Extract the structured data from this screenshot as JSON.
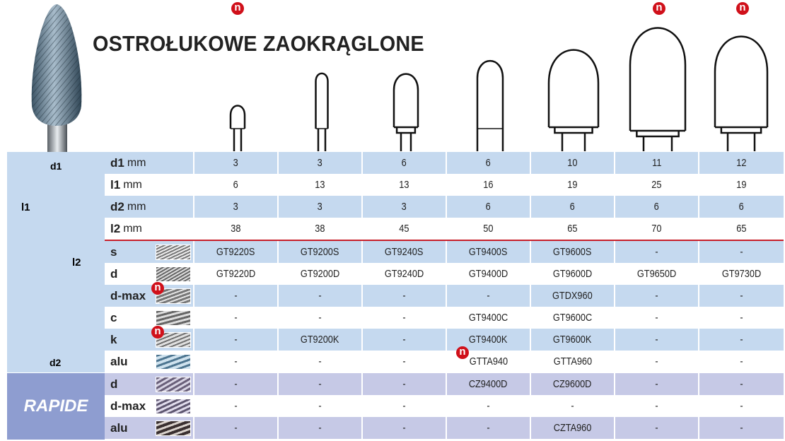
{
  "title": "OSTROŁUKOWE ZAOKRĄGLONE",
  "new_badge": "n",
  "colors": {
    "blue_row": "#c5d9ef",
    "white_row": "#ffffff",
    "rapide_row": "#c6c9e6",
    "rapide_label_bg": "#8e9dd0",
    "accent_red": "#c8202a"
  },
  "diagram_labels": {
    "d1": "d1",
    "l1": "l1",
    "l2": "l2",
    "d2": "d2"
  },
  "dimension_rows": [
    {
      "name": "d1",
      "unit": "mm",
      "values": [
        "3",
        "3",
        "6",
        "6",
        "10",
        "11",
        "12"
      ]
    },
    {
      "name": "l1",
      "unit": "mm",
      "values": [
        "6",
        "13",
        "13",
        "16",
        "19",
        "25",
        "19"
      ]
    },
    {
      "name": "d2",
      "unit": "mm",
      "values": [
        "3",
        "3",
        "3",
        "6",
        "6",
        "6",
        "6"
      ]
    },
    {
      "name": "l2",
      "unit": "mm",
      "values": [
        "38",
        "38",
        "45",
        "50",
        "65",
        "70",
        "65"
      ]
    }
  ],
  "new_columns": [
    1,
    6,
    7
  ],
  "cut_rows": [
    {
      "name": "s",
      "texture": "spiral-fine",
      "new": false,
      "values": [
        "GT9220S",
        "GT9200S",
        "GT9240S",
        "GT9400S",
        "GT9600S",
        "-",
        "-"
      ]
    },
    {
      "name": "d",
      "texture": "diamond",
      "new": false,
      "values": [
        "GT9220D",
        "GT9200D",
        "GT9240D",
        "GT9400D",
        "GT9600D",
        "GT9650D",
        "GT9730D"
      ]
    },
    {
      "name": "d-max",
      "texture": "diamond-max",
      "new": true,
      "values": [
        "-",
        "-",
        "-",
        "-",
        "GTDX960",
        "-",
        "-"
      ]
    },
    {
      "name": "c",
      "texture": "chipbreaker",
      "new": false,
      "values": [
        "-",
        "-",
        "-",
        "GT9400C",
        "GT9600C",
        "-",
        "-"
      ]
    },
    {
      "name": "k",
      "texture": "coarse",
      "new": true,
      "values": [
        "-",
        "GT9200K",
        "-",
        "GT9400K",
        "GT9600K",
        "-",
        "-"
      ]
    },
    {
      "name": "alu",
      "texture": "alu",
      "new": false,
      "values": [
        "-",
        "-",
        "-",
        "GTTA940",
        "GTTA960",
        "-",
        "-"
      ],
      "new_cells": [
        3
      ]
    }
  ],
  "rapide": {
    "label": "RAPIDE",
    "rows": [
      {
        "name": "d",
        "texture": "rapide-d",
        "values": [
          "-",
          "-",
          "-",
          "CZ9400D",
          "CZ9600D",
          "-",
          "-"
        ]
      },
      {
        "name": "d-max",
        "texture": "rapide-dmax",
        "values": [
          "-",
          "-",
          "-",
          "-",
          "-",
          "-",
          "-"
        ]
      },
      {
        "name": "alu",
        "texture": "rapide-alu",
        "values": [
          "-",
          "-",
          "-",
          "-",
          "CZTA960",
          "-",
          "-"
        ]
      }
    ]
  }
}
